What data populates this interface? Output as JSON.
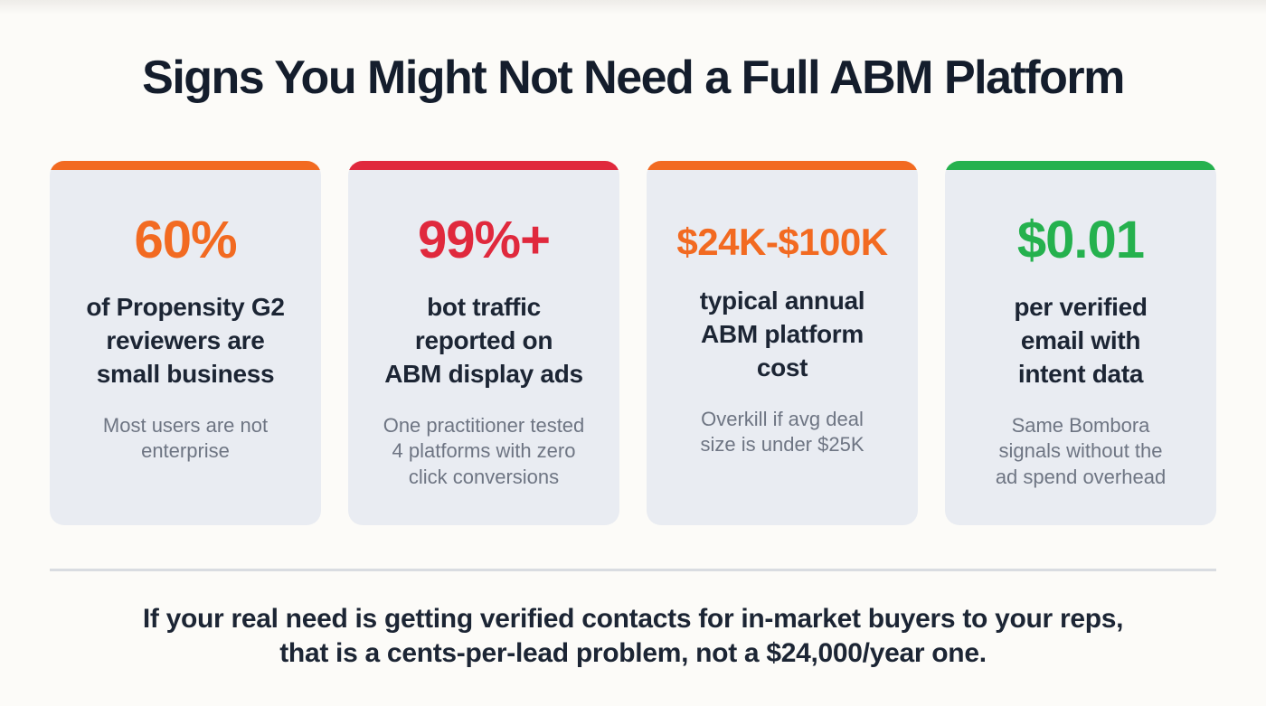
{
  "title": "Signs You Might Not Need a Full ABM Platform",
  "cards": [
    {
      "stat": "60%",
      "accent_color": "#f26a21",
      "heading": "of Propensity G2\nreviewers are\nsmall business",
      "subtext": "Most users are not\nenterprise"
    },
    {
      "stat": "99%+",
      "accent_color": "#e0293d",
      "heading": "bot traffic\nreported on\nABM display ads",
      "subtext": "One practitioner tested\n4 platforms with zero\nclick conversions"
    },
    {
      "stat": "$24K-$100K",
      "accent_color": "#f26a21",
      "heading": "typical annual\nABM platform\ncost",
      "subtext": "Overkill if avg deal\nsize is under $25K"
    },
    {
      "stat": "$0.01",
      "accent_color": "#25b14e",
      "heading": "per verified\nemail with\nintent data",
      "subtext": "Same Bombora\nsignals without the\nad spend overhead"
    }
  ],
  "footer": {
    "text": "If your real need is getting verified contacts for in-market buyers to your reps,\nthat is a cents-per-lead problem, not a $24,000/year one."
  }
}
